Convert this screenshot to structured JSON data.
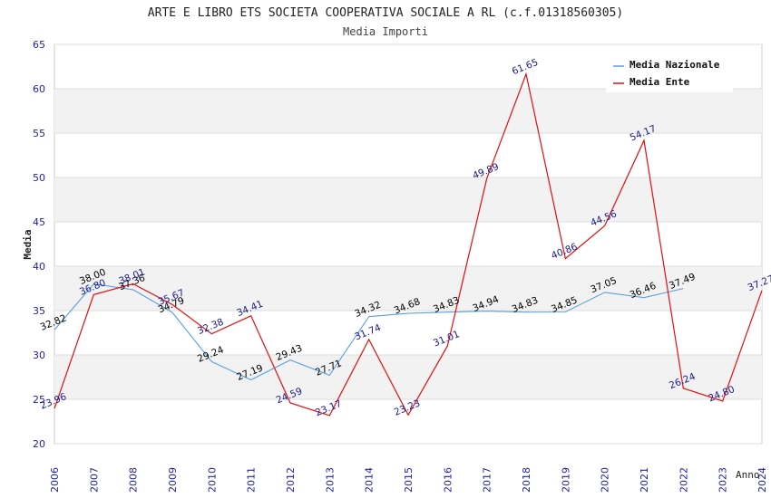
{
  "chart_data": {
    "type": "line",
    "title": "ARTE E LIBRO ETS SOCIETA COOPERATIVA SOCIALE A RL (c.f.01318560305)",
    "subtitle": "Media Importi",
    "xlabel": "Anno",
    "ylabel": "Media",
    "ylim": [
      20,
      65
    ],
    "yticks": [
      "20",
      "25",
      "30",
      "35",
      "40",
      "45",
      "50",
      "55",
      "60",
      "65"
    ],
    "x": [
      "2006",
      "2007",
      "2008",
      "2009",
      "2010",
      "2011",
      "2012",
      "2013",
      "2014",
      "2015",
      "2016",
      "2017",
      "2018",
      "2019",
      "2020",
      "2021",
      "2022",
      "2023",
      "2024"
    ],
    "legend_position": "top-right",
    "series": [
      {
        "name": "Media Nazionale",
        "color": "#5aa0e0",
        "values": [
          32.82,
          38.0,
          37.36,
          34.79,
          29.24,
          27.19,
          29.43,
          27.71,
          34.32,
          34.68,
          34.83,
          34.94,
          34.83,
          34.85,
          37.05,
          36.46,
          37.49,
          null,
          null
        ],
        "labels": [
          "32.82",
          "38.00",
          "37.36",
          "34.79",
          "29.24",
          "27.19",
          "29.43",
          "27.71",
          "34.32",
          "34.68",
          "34.83",
          "34.94",
          "34.83",
          "34.85",
          "37.05",
          "36.46",
          "37.49",
          null,
          null
        ]
      },
      {
        "name": "Media Ente",
        "color": "#e01010",
        "values": [
          23.96,
          36.8,
          38.01,
          35.67,
          32.38,
          34.41,
          24.59,
          23.17,
          31.74,
          23.23,
          31.01,
          49.89,
          61.65,
          40.86,
          44.56,
          54.17,
          26.24,
          24.8,
          37.27
        ],
        "labels": [
          "23.96",
          "36.80",
          "38.01",
          "35.67",
          "32.38",
          "34.41",
          "24.59",
          "23.17",
          "31.74",
          "23.23",
          "31.01",
          "49.89",
          "61.65",
          "40.86",
          "44.56",
          "54.17",
          "26.24",
          "24.80",
          "37.27"
        ]
      }
    ],
    "grid": true
  }
}
